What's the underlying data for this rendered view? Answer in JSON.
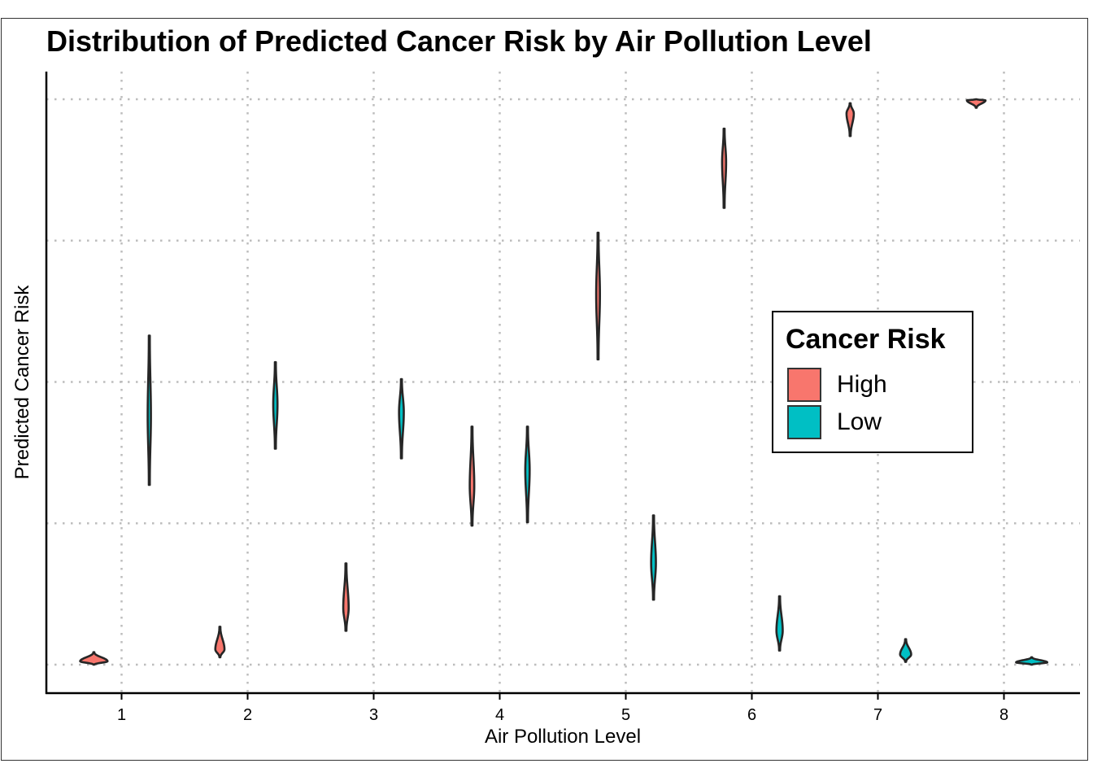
{
  "chart_data": {
    "type": "violin",
    "title": "Distribution of Predicted Cancer Risk by Air Pollution Level",
    "xlabel": "Air Pollution Level",
    "ylabel": "Predicted Cancer Risk",
    "x_ticks": [
      "1",
      "2",
      "3",
      "4",
      "5",
      "6",
      "7",
      "8"
    ],
    "xlim": [
      0.4,
      8.6
    ],
    "ylim": [
      -0.05,
      1.05
    ],
    "y_gridlines": [
      0,
      0.25,
      0.5,
      0.75,
      1
    ],
    "y_tick_labels_shown": false,
    "grid": "dotted",
    "legend": {
      "title": "Cancer Risk",
      "placement": "right-center inside",
      "entries": [
        {
          "name": "High",
          "color": "#F8766D"
        },
        {
          "name": "Low",
          "color": "#00BFC4"
        }
      ]
    },
    "series": [
      {
        "name": "High",
        "color": "#F8766D",
        "violins": [
          {
            "x": 1,
            "center": 0.006,
            "low": 0.0,
            "high": 0.022,
            "width": 0.21
          },
          {
            "x": 2,
            "center": 0.027,
            "low": 0.013,
            "high": 0.067,
            "width": 0.065
          },
          {
            "x": 3,
            "center": 0.1,
            "low": 0.06,
            "high": 0.179,
            "width": 0.035
          },
          {
            "x": 4,
            "center": 0.316,
            "low": 0.246,
            "high": 0.421,
            "width": 0.028
          },
          {
            "x": 5,
            "center": 0.655,
            "low": 0.54,
            "high": 0.764,
            "width": 0.022
          },
          {
            "x": 6,
            "center": 0.889,
            "low": 0.808,
            "high": 0.948,
            "width": 0.024
          },
          {
            "x": 7,
            "center": 0.975,
            "low": 0.935,
            "high": 0.993,
            "width": 0.05
          },
          {
            "x": 8,
            "center": 0.998,
            "low": 0.985,
            "high": 1.0,
            "width": 0.14
          }
        ]
      },
      {
        "name": "Low",
        "color": "#00BFC4",
        "violins": [
          {
            "x": 1,
            "center": 0.44,
            "low": 0.318,
            "high": 0.582,
            "width": 0.018
          },
          {
            "x": 2,
            "center": 0.46,
            "low": 0.382,
            "high": 0.535,
            "width": 0.026
          },
          {
            "x": 3,
            "center": 0.447,
            "low": 0.365,
            "high": 0.505,
            "width": 0.03
          },
          {
            "x": 4,
            "center": 0.344,
            "low": 0.252,
            "high": 0.421,
            "width": 0.027
          },
          {
            "x": 5,
            "center": 0.18,
            "low": 0.115,
            "high": 0.264,
            "width": 0.03
          },
          {
            "x": 6,
            "center": 0.06,
            "low": 0.025,
            "high": 0.121,
            "width": 0.042
          },
          {
            "x": 7,
            "center": 0.018,
            "low": 0.005,
            "high": 0.045,
            "width": 0.08
          },
          {
            "x": 8,
            "center": 0.004,
            "low": 0.0,
            "high": 0.013,
            "width": 0.24
          }
        ]
      }
    ]
  }
}
